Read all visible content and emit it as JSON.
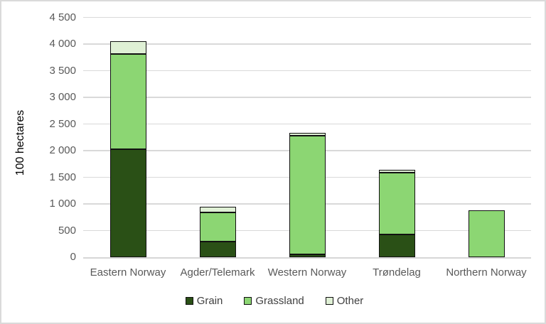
{
  "chart_data": {
    "type": "bar",
    "stacked": true,
    "title": "",
    "ylabel": "100 hectares",
    "xlabel": "",
    "categories": [
      "Eastern Norway",
      "Agder/Telemark",
      "Western Norway",
      "Trøndelag",
      "Northern Norway"
    ],
    "series": [
      {
        "name": "Grain",
        "color": "#2a5016",
        "values": [
          2030,
          300,
          50,
          430,
          0
        ]
      },
      {
        "name": "Grassland",
        "color": "#8cd673",
        "values": [
          1780,
          540,
          2230,
          1155,
          880
        ]
      },
      {
        "name": "Other",
        "color": "#dff0d5",
        "values": [
          240,
          105,
          50,
          55,
          0
        ]
      }
    ],
    "ylim": [
      0,
      4500
    ],
    "ytick_step": 500,
    "ytick_labels": [
      "0",
      "500",
      "1 000",
      "1 500",
      "2 000",
      "2 500",
      "3 000",
      "3 500",
      "4 000",
      "4 500"
    ],
    "grid": true,
    "legend_position": "bottom",
    "colors": {
      "gridline": "#d9d9d9",
      "axis_line": "#d6d6d6",
      "tick_text": "#595959",
      "category_text": "#595959",
      "legend_text": "#404040",
      "segment_border": "#111111"
    }
  }
}
